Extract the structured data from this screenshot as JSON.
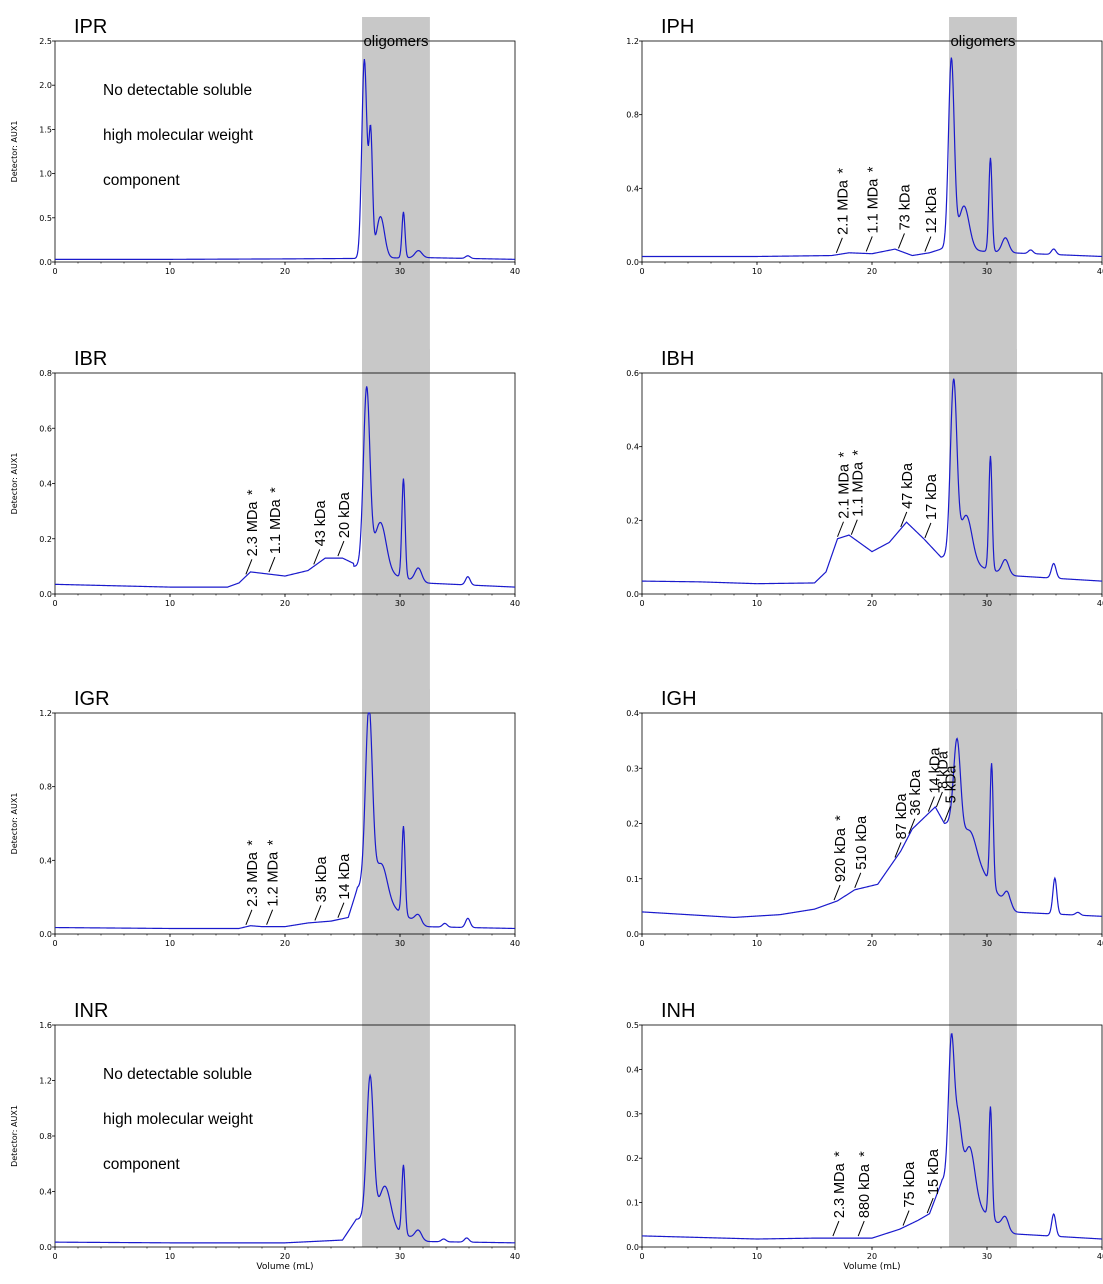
{
  "shade": {
    "label": "oligomers",
    "color": "#c8c8c8"
  },
  "line_color": "#1a1acc",
  "ylabel": "Detector: AUX1",
  "xlabel": "Volume (mL)",
  "chart_data": [
    {
      "type": "line",
      "title": "IPR",
      "xlim": [
        0,
        40
      ],
      "ylim": [
        0,
        2.5
      ],
      "xticks": [
        "0",
        "10",
        "20",
        "30",
        "40"
      ],
      "yticks": [
        "0.0",
        "0.5",
        "1.0",
        "1.5",
        "2.0",
        "2.5"
      ],
      "shade": [
        26.7,
        32.6
      ],
      "show_shade_label": true,
      "note": [
        "No detectable soluble",
        "high molecular weight",
        "component"
      ],
      "baseline": [
        [
          0,
          0.03
        ],
        [
          10,
          0.03
        ],
        [
          20,
          0.035
        ],
        [
          26,
          0.04
        ]
      ],
      "peaks": [
        [
          26.9,
          2.25,
          0.22
        ],
        [
          27.45,
          1.38,
          0.16
        ],
        [
          28.3,
          0.47,
          0.35
        ],
        [
          30.3,
          0.52,
          0.13
        ],
        [
          31.6,
          0.08,
          0.3
        ],
        [
          35.9,
          0.03,
          0.2
        ]
      ],
      "tail": [
        [
          26.2,
          0.04
        ],
        [
          32,
          0.05
        ],
        [
          40,
          0.03
        ]
      ],
      "annotations": []
    },
    {
      "type": "line",
      "title": "IPH",
      "xlim": [
        0,
        40
      ],
      "ylim": [
        0,
        1.2
      ],
      "xticks": [
        "0",
        "10",
        "20",
        "30",
        "40"
      ],
      "yticks": [
        "0.0",
        "0.4",
        "0.8",
        "1.2"
      ],
      "shade": [
        26.7,
        32.6
      ],
      "show_shade_label": true,
      "note": [],
      "baseline": [
        [
          0,
          0.03
        ],
        [
          10,
          0.03
        ],
        [
          16.5,
          0.035
        ],
        [
          18,
          0.05
        ],
        [
          20,
          0.045
        ],
        [
          22,
          0.07
        ],
        [
          23.5,
          0.035
        ],
        [
          25,
          0.05
        ],
        [
          26,
          0.07
        ]
      ],
      "peaks": [
        [
          26.9,
          1.03,
          0.25
        ],
        [
          28.0,
          0.24,
          0.45
        ],
        [
          30.3,
          0.51,
          0.14
        ],
        [
          31.6,
          0.08,
          0.3
        ],
        [
          33.8,
          0.02,
          0.2
        ],
        [
          35.8,
          0.03,
          0.2
        ]
      ],
      "tail": [
        [
          26.3,
          0.07
        ],
        [
          32,
          0.05
        ],
        [
          40,
          0.03
        ]
      ],
      "annotations": [
        {
          "label": "2.1 MDa",
          "star": true,
          "x": 16.9,
          "y": 0.05
        },
        {
          "label": "1.1 MDa",
          "star": true,
          "x": 19.5,
          "y": 0.045
        },
        {
          "label": "73 kDa",
          "star": false,
          "x": 22.3,
          "y": 0.07
        },
        {
          "label": "12 kDa",
          "star": false,
          "x": 24.6,
          "y": 0.05
        }
      ]
    },
    {
      "type": "line",
      "title": "IBR",
      "xlim": [
        0,
        40
      ],
      "ylim": [
        0,
        0.8
      ],
      "xticks": [
        "0",
        "10",
        "20",
        "30",
        "40"
      ],
      "yticks": [
        "0.0",
        "0.2",
        "0.4",
        "0.6",
        "0.8"
      ],
      "shade": [
        26.7,
        32.6
      ],
      "show_shade_label": false,
      "note": [],
      "baseline": [
        [
          0,
          0.035
        ],
        [
          5,
          0.03
        ],
        [
          10,
          0.025
        ],
        [
          15,
          0.025
        ],
        [
          16,
          0.04
        ],
        [
          17,
          0.08
        ],
        [
          18,
          0.075
        ],
        [
          20,
          0.065
        ],
        [
          22,
          0.085
        ],
        [
          23.5,
          0.13
        ],
        [
          25,
          0.13
        ],
        [
          26,
          0.11
        ]
      ],
      "peaks": [
        [
          27.1,
          0.65,
          0.28
        ],
        [
          28.3,
          0.18,
          0.5
        ],
        [
          30.3,
          0.36,
          0.14
        ],
        [
          31.6,
          0.05,
          0.3
        ],
        [
          35.9,
          0.03,
          0.2
        ]
      ],
      "tail": [
        [
          26.3,
          0.1
        ],
        [
          32,
          0.04
        ],
        [
          40,
          0.025
        ]
      ],
      "annotations": [
        {
          "label": "2.3 MDa",
          "star": true,
          "x": 16.6,
          "y": 0.08
        },
        {
          "label": "1.1 MDa",
          "star": true,
          "x": 18.6,
          "y": 0.07
        },
        {
          "label": "43 kDa",
          "star": false,
          "x": 22.5,
          "y": 0.1
        },
        {
          "label": "20 kDa",
          "star": false,
          "x": 24.6,
          "y": 0.13
        }
      ]
    },
    {
      "type": "line",
      "title": "IBH",
      "xlim": [
        0,
        40
      ],
      "ylim": [
        0,
        0.6
      ],
      "xticks": [
        "0",
        "10",
        "20",
        "30",
        "40"
      ],
      "yticks": [
        "0.0",
        "0.2",
        "0.4",
        "0.6"
      ],
      "shade": [
        26.7,
        32.6
      ],
      "show_shade_label": false,
      "note": [],
      "baseline": [
        [
          0,
          0.035
        ],
        [
          5,
          0.033
        ],
        [
          10,
          0.028
        ],
        [
          15,
          0.03
        ],
        [
          16,
          0.06
        ],
        [
          17,
          0.15
        ],
        [
          18,
          0.16
        ],
        [
          20,
          0.115
        ],
        [
          21.5,
          0.14
        ],
        [
          23,
          0.195
        ],
        [
          24.5,
          0.15
        ],
        [
          26,
          0.1
        ]
      ],
      "peaks": [
        [
          27.1,
          0.48,
          0.28
        ],
        [
          28.2,
          0.13,
          0.5
        ],
        [
          30.3,
          0.31,
          0.14
        ],
        [
          31.6,
          0.04,
          0.3
        ],
        [
          35.8,
          0.04,
          0.2
        ]
      ],
      "tail": [
        [
          26.3,
          0.1
        ],
        [
          32,
          0.05
        ],
        [
          40,
          0.035
        ]
      ],
      "annotations": [
        {
          "label": "2.1 MDa",
          "star": true,
          "x": 17.0,
          "y": 0.15
        },
        {
          "label": "1.1 MDa",
          "star": true,
          "x": 18.2,
          "y": 0.16
        },
        {
          "label": "47 kDa",
          "star": false,
          "x": 22.5,
          "y": 0.18
        },
        {
          "label": "17 kDa",
          "star": false,
          "x": 24.6,
          "y": 0.15
        }
      ]
    },
    {
      "type": "line",
      "title": "IGR",
      "xlim": [
        0,
        40
      ],
      "ylim": [
        0,
        1.2
      ],
      "xticks": [
        "0",
        "10",
        "20",
        "30",
        "40"
      ],
      "yticks": [
        "0.0",
        "0.4",
        "0.8",
        "1.2"
      ],
      "shade": [
        26.7,
        32.6
      ],
      "show_shade_label": false,
      "note": [],
      "baseline": [
        [
          0,
          0.035
        ],
        [
          10,
          0.03
        ],
        [
          16,
          0.03
        ],
        [
          17,
          0.045
        ],
        [
          18,
          0.04
        ],
        [
          20,
          0.04
        ],
        [
          22,
          0.06
        ],
        [
          24,
          0.07
        ],
        [
          25.5,
          0.09
        ],
        [
          26.3,
          0.25
        ]
      ],
      "peaks": [
        [
          27.3,
          1.0,
          0.3
        ],
        [
          28.4,
          0.2,
          0.5
        ],
        [
          30.3,
          0.48,
          0.14
        ],
        [
          31.6,
          0.05,
          0.3
        ],
        [
          33.9,
          0.02,
          0.2
        ],
        [
          35.9,
          0.05,
          0.2
        ]
      ],
      "tail": [
        [
          26.6,
          0.25
        ],
        [
          32,
          0.04
        ],
        [
          40,
          0.03
        ]
      ],
      "annotations": [
        {
          "label": "2.3 MDa",
          "star": true,
          "x": 16.6,
          "y": 0.045
        },
        {
          "label": "1.2 MDa",
          "star": true,
          "x": 18.4,
          "y": 0.04
        },
        {
          "label": "35 kDa",
          "star": false,
          "x": 22.6,
          "y": 0.06
        },
        {
          "label": "14 kDa",
          "star": false,
          "x": 24.6,
          "y": 0.08
        }
      ]
    },
    {
      "type": "line",
      "title": "IGH",
      "xlim": [
        0,
        40
      ],
      "ylim": [
        0,
        0.4
      ],
      "xticks": [
        "0",
        "10",
        "20",
        "30",
        "40"
      ],
      "yticks": [
        "0.0",
        "0.1",
        "0.2",
        "0.3",
        "0.4"
      ],
      "shade": [
        26.7,
        32.6
      ],
      "show_shade_label": false,
      "note": [],
      "baseline": [
        [
          0,
          0.04
        ],
        [
          4,
          0.035
        ],
        [
          8,
          0.03
        ],
        [
          12,
          0.035
        ],
        [
          15,
          0.045
        ],
        [
          17,
          0.06
        ],
        [
          18.5,
          0.08
        ],
        [
          20.5,
          0.09
        ],
        [
          21.5,
          0.12
        ],
        [
          22.5,
          0.15
        ],
        [
          23.5,
          0.19
        ],
        [
          25.5,
          0.23
        ],
        [
          26.3,
          0.2
        ]
      ],
      "peaks": [
        [
          27.4,
          0.17,
          0.3
        ],
        [
          28.6,
          0.04,
          0.5
        ],
        [
          30.4,
          0.22,
          0.14
        ],
        [
          31.8,
          0.03,
          0.3
        ],
        [
          35.9,
          0.065,
          0.17
        ],
        [
          37.9,
          0.005,
          0.2
        ]
      ],
      "tail": [
        [
          26.8,
          0.2
        ],
        [
          32,
          0.04
        ],
        [
          40,
          0.032
        ]
      ],
      "annotations": [
        {
          "label": "920 kDa",
          "star": true,
          "x": 16.7,
          "y": 0.062
        },
        {
          "label": "510 kDa",
          "star": false,
          "x": 18.5,
          "y": 0.078
        },
        {
          "label": "87 kDa",
          "star": false,
          "x": 22.0,
          "y": 0.14
        },
        {
          "label": "36 kDa",
          "star": false,
          "x": 23.2,
          "y": 0.19
        },
        {
          "label": "14 kDa",
          "star": false,
          "x": 24.9,
          "y": 0.215
        },
        {
          "label": "8 kDa",
          "star": false,
          "x": 25.6,
          "y": 0.225
        },
        {
          "label": "5 kDa",
          "star": false,
          "x": 26.3,
          "y": 0.2
        }
      ]
    },
    {
      "type": "line",
      "title": "INR",
      "xlim": [
        0,
        40
      ],
      "ylim": [
        0,
        1.6
      ],
      "xticks": [
        "0",
        "10",
        "20",
        "30",
        "40"
      ],
      "yticks": [
        "0.0",
        "0.4",
        "0.8",
        "1.2",
        "1.6"
      ],
      "shade": [
        26.7,
        32.6
      ],
      "show_shade_label": false,
      "note": [
        "No detectable soluble",
        "high molecular weight",
        "component"
      ],
      "baseline": [
        [
          0,
          0.035
        ],
        [
          10,
          0.03
        ],
        [
          20,
          0.03
        ],
        [
          25,
          0.05
        ],
        [
          26.2,
          0.2
        ]
      ],
      "peaks": [
        [
          27.4,
          1.05,
          0.3
        ],
        [
          28.7,
          0.3,
          0.5
        ],
        [
          30.3,
          0.5,
          0.14
        ],
        [
          31.6,
          0.07,
          0.3
        ],
        [
          33.8,
          0.02,
          0.2
        ],
        [
          35.8,
          0.03,
          0.2
        ]
      ],
      "tail": [
        [
          26.6,
          0.2
        ],
        [
          32,
          0.04
        ],
        [
          40,
          0.03
        ]
      ],
      "annotations": []
    },
    {
      "type": "line",
      "title": "INH",
      "xlim": [
        0,
        40
      ],
      "ylim": [
        0,
        0.5
      ],
      "xticks": [
        "0",
        "10",
        "20",
        "30",
        "40"
      ],
      "yticks": [
        "0.0",
        "0.1",
        "0.2",
        "0.3",
        "0.4",
        "0.5"
      ],
      "shade": [
        26.7,
        32.6
      ],
      "show_shade_label": false,
      "note": [],
      "baseline": [
        [
          0,
          0.025
        ],
        [
          10,
          0.018
        ],
        [
          15,
          0.02
        ],
        [
          20,
          0.02
        ],
        [
          22.4,
          0.04
        ],
        [
          24,
          0.06
        ],
        [
          25,
          0.075
        ],
        [
          26.1,
          0.15
        ]
      ],
      "peaks": [
        [
          26.9,
          0.32,
          0.25
        ],
        [
          27.5,
          0.15,
          0.3
        ],
        [
          28.5,
          0.12,
          0.45
        ],
        [
          30.3,
          0.25,
          0.14
        ],
        [
          31.6,
          0.03,
          0.3
        ],
        [
          35.8,
          0.05,
          0.18
        ]
      ],
      "tail": [
        [
          26.4,
          0.15
        ],
        [
          32,
          0.03
        ],
        [
          40,
          0.018
        ]
      ],
      "annotations": [
        {
          "label": "2.3 MDa",
          "star": true,
          "x": 16.6,
          "y": 0.022
        },
        {
          "label": "880 kDa",
          "star": true,
          "x": 18.8,
          "y": 0.02
        },
        {
          "label": "75 kDa",
          "star": false,
          "x": 22.7,
          "y": 0.04
        },
        {
          "label": "15 kDa",
          "star": false,
          "x": 24.8,
          "y": 0.07
        }
      ]
    }
  ]
}
